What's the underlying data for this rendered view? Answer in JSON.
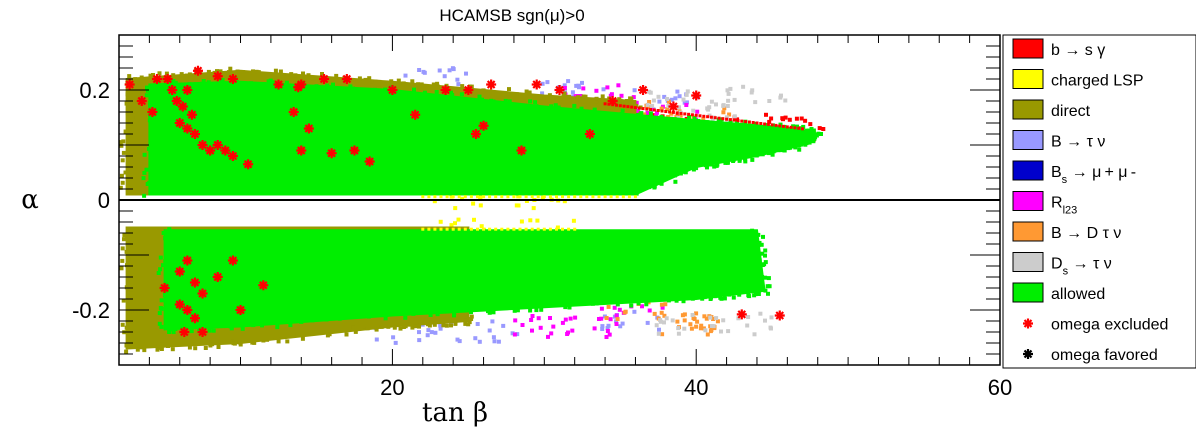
{
  "chart_data": {
    "type": "scatter",
    "title": "HCAMSB    sgn(μ)>0",
    "xlabel": "tan β",
    "ylabel": "α",
    "xlim": [
      2,
      60
    ],
    "ylim": [
      -0.3,
      0.3
    ],
    "x_ticks": [
      20,
      40,
      60
    ],
    "y_ticks": [
      0.2,
      0,
      -0.2
    ],
    "x_tick_labels": [
      "20",
      "40",
      "60"
    ],
    "y_tick_labels": [
      "0.2",
      "0",
      "-0.2"
    ],
    "grid": false,
    "legend_position": "right",
    "series": [
      {
        "name": "b → s γ",
        "marker": "box",
        "color": "#ff0000",
        "description_points": [
          [
            44,
            0.135
          ],
          [
            46,
            0.132
          ],
          [
            47,
            0.13
          ],
          [
            38,
            0.14
          ]
        ]
      },
      {
        "name": "charged LSP",
        "marker": "box",
        "color": "#ffff00",
        "description_points": [
          [
            25,
            0.005
          ],
          [
            30,
            0.005
          ],
          [
            25,
            -0.055
          ],
          [
            30,
            -0.055
          ]
        ]
      },
      {
        "name": "direct",
        "marker": "box",
        "color": "#999900",
        "region_upper": [
          [
            2.5,
            0.01
          ],
          [
            2.5,
            0.22
          ],
          [
            10,
            0.235
          ],
          [
            20,
            0.215
          ],
          [
            30,
            0.19
          ],
          [
            36,
            0.18
          ],
          [
            36,
            0.01
          ]
        ],
        "region_lower": [
          [
            2.5,
            -0.05
          ],
          [
            2.5,
            -0.27
          ],
          [
            10,
            -0.26
          ],
          [
            20,
            -0.23
          ],
          [
            25,
            -0.22
          ],
          [
            25,
            -0.05
          ]
        ]
      },
      {
        "name": "B → τ ν",
        "marker": "box",
        "color": "#9999ff",
        "description_points": [
          [
            23,
            0.22
          ],
          [
            31,
            0.2
          ],
          [
            38,
            0.18
          ],
          [
            21,
            -0.24
          ],
          [
            26,
            -0.24
          ],
          [
            36,
            -0.22
          ],
          [
            32,
            0.19
          ]
        ]
      },
      {
        "name": "B_s → μ+ μ-",
        "marker": "box",
        "color": "#0000cc",
        "description_points": []
      },
      {
        "name": "R_l23",
        "marker": "box",
        "color": "#ff00ff",
        "description_points": [
          [
            33,
            0.19
          ],
          [
            35,
            0.17
          ],
          [
            38,
            0.16
          ],
          [
            30,
            -0.23
          ],
          [
            33,
            -0.23
          ],
          [
            36,
            -0.19
          ]
        ]
      },
      {
        "name": "B → D τ ν",
        "marker": "box",
        "color": "#ff9933",
        "description_points": [
          [
            36,
            0.16
          ],
          [
            40,
            0.15
          ],
          [
            36,
            -0.2
          ],
          [
            39,
            -0.225
          ],
          [
            41,
            -0.22
          ]
        ]
      },
      {
        "name": "D_s → τ ν",
        "marker": "box",
        "color": "#cccccc",
        "description_points": [
          [
            39,
            0.18
          ],
          [
            41,
            0.165
          ],
          [
            44,
            0.19
          ],
          [
            39,
            -0.225
          ],
          [
            43,
            -0.225
          ]
        ]
      },
      {
        "name": "allowed",
        "marker": "box",
        "color": "#00ee00",
        "region_upper": [
          [
            4,
            0.01
          ],
          [
            4,
            0.21
          ],
          [
            10,
            0.215
          ],
          [
            20,
            0.2
          ],
          [
            30,
            0.17
          ],
          [
            40,
            0.145
          ],
          [
            46.5,
            0.13
          ],
          [
            48,
            0.12
          ],
          [
            47,
            0.1
          ],
          [
            44,
            0.08
          ],
          [
            40,
            0.06
          ],
          [
            36,
            0.01
          ]
        ],
        "region_lower": [
          [
            5,
            -0.055
          ],
          [
            5,
            -0.235
          ],
          [
            10,
            -0.23
          ],
          [
            20,
            -0.21
          ],
          [
            30,
            -0.195
          ],
          [
            40,
            -0.18
          ],
          [
            44.5,
            -0.165
          ],
          [
            44,
            -0.055
          ]
        ]
      },
      {
        "name": "omega excluded",
        "marker": "star",
        "color": "#ff0000",
        "points": [
          [
            2.7,
            0.21
          ],
          [
            3.5,
            0.18
          ],
          [
            4.2,
            0.16
          ],
          [
            4.5,
            0.22
          ],
          [
            5.2,
            0.22
          ],
          [
            5.5,
            0.2
          ],
          [
            5.8,
            0.18
          ],
          [
            6.2,
            0.17
          ],
          [
            6.5,
            0.2
          ],
          [
            6.0,
            0.14
          ],
          [
            6.5,
            0.13
          ],
          [
            6.8,
            0.155
          ],
          [
            7.0,
            0.12
          ],
          [
            7.5,
            0.1
          ],
          [
            8.0,
            0.09
          ],
          [
            8.5,
            0.1
          ],
          [
            9.0,
            0.09
          ],
          [
            9.5,
            0.08
          ],
          [
            10.5,
            0.065
          ],
          [
            7.2,
            0.235
          ],
          [
            8.5,
            0.225
          ],
          [
            9.5,
            0.22
          ],
          [
            12.5,
            0.21
          ],
          [
            14.0,
            0.21
          ],
          [
            15.5,
            0.22
          ],
          [
            17.0,
            0.22
          ],
          [
            13.5,
            0.16
          ],
          [
            14.5,
            0.13
          ],
          [
            14.0,
            0.09
          ],
          [
            16.0,
            0.085
          ],
          [
            17.5,
            0.09
          ],
          [
            18.5,
            0.07
          ],
          [
            13.8,
            0.205
          ],
          [
            20.0,
            0.2
          ],
          [
            21.5,
            0.155
          ],
          [
            23.5,
            0.2
          ],
          [
            25.0,
            0.2
          ],
          [
            25.5,
            0.12
          ],
          [
            26.0,
            0.135
          ],
          [
            26.5,
            0.21
          ],
          [
            28.5,
            0.09
          ],
          [
            29.5,
            0.21
          ],
          [
            31.0,
            0.2
          ],
          [
            33.0,
            0.12
          ],
          [
            34.5,
            0.18
          ],
          [
            36.5,
            0.2
          ],
          [
            38.5,
            0.17
          ],
          [
            40.0,
            0.19
          ],
          [
            6.0,
            -0.13
          ],
          [
            6.5,
            -0.11
          ],
          [
            7.0,
            -0.15
          ],
          [
            7.5,
            -0.17
          ],
          [
            6.0,
            -0.19
          ],
          [
            6.5,
            -0.2
          ],
          [
            7.0,
            -0.215
          ],
          [
            7.5,
            -0.24
          ],
          [
            6.3,
            -0.24
          ],
          [
            5.0,
            -0.16
          ],
          [
            8.5,
            -0.14
          ],
          [
            9.5,
            -0.11
          ],
          [
            10.0,
            -0.2
          ],
          [
            11.5,
            -0.155
          ],
          [
            43.0,
            -0.208
          ],
          [
            45.5,
            -0.21
          ]
        ]
      },
      {
        "name": "omega favored",
        "marker": "star",
        "color": "#000000",
        "points": []
      }
    ]
  }
}
